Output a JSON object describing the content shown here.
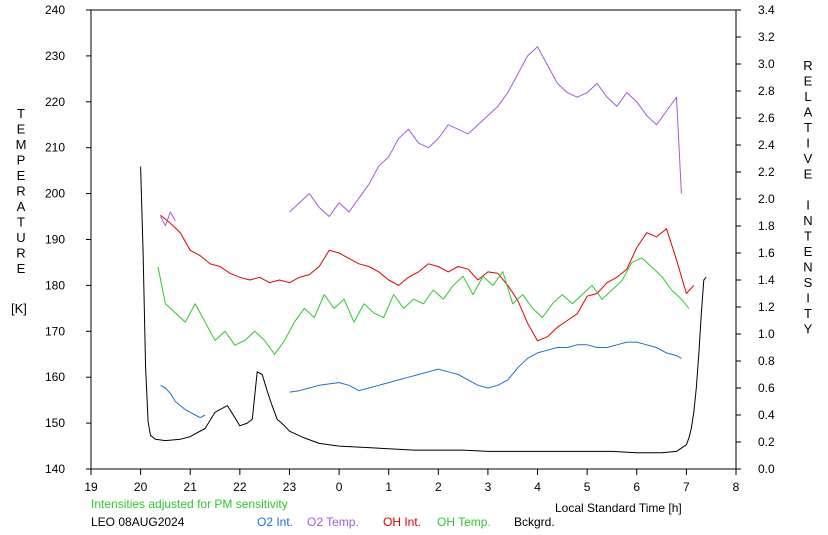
{
  "chart_data": {
    "type": "line",
    "x_axis": {
      "label": "Local Standard Time [h]",
      "ticks": [
        "19",
        "20",
        "21",
        "22",
        "23",
        "0",
        "1",
        "2",
        "3",
        "4",
        "5",
        "6",
        "7",
        "8"
      ],
      "range": [
        19,
        32
      ]
    },
    "y_left": {
      "label_letters": [
        "T",
        "E",
        "M",
        "P",
        "E",
        "R",
        "A",
        "T",
        "U",
        "R",
        "E"
      ],
      "unit": "[K]",
      "range": [
        140,
        240
      ],
      "ticks": [
        "140",
        "150",
        "160",
        "170",
        "180",
        "190",
        "200",
        "210",
        "220",
        "230",
        "240"
      ]
    },
    "y_right": {
      "label_words": [
        "RELATIVE",
        "INTENSITY"
      ],
      "range": [
        0.0,
        3.4
      ],
      "ticks": [
        "0.0",
        "0.2",
        "0.4",
        "0.6",
        "0.8",
        "1.0",
        "1.2",
        "1.4",
        "1.6",
        "1.8",
        "2.0",
        "2.2",
        "2.4",
        "2.6",
        "2.8",
        "3.0",
        "3.2",
        "3.4"
      ]
    },
    "note": "Intensities adjusted for PM sensitivity",
    "station": "LEO 08AUG2024",
    "legend": [
      {
        "name": "O2 Int.",
        "color": "#1f6fd6"
      },
      {
        "name": "O2 Temp.",
        "color": "#a45bd6"
      },
      {
        "name": "OH Int.",
        "color": "#e00000"
      },
      {
        "name": "OH Temp.",
        "color": "#2ec92e"
      },
      {
        "name": "Bckgrd.",
        "color": "#000000"
      }
    ],
    "series": [
      {
        "name": "Bckgrd.",
        "axis": "right",
        "color": "#000000",
        "x": [
          20.0,
          20.05,
          20.1,
          20.15,
          20.2,
          20.3,
          20.5,
          20.8,
          21.0,
          21.3,
          21.5,
          21.75,
          21.9,
          22.0,
          22.15,
          22.25,
          22.35,
          22.45,
          22.55,
          22.65,
          22.75,
          22.9,
          23.0,
          23.3,
          23.6,
          24.0,
          24.5,
          25.0,
          25.5,
          26.0,
          26.5,
          27.0,
          27.5,
          28.0,
          28.5,
          29.0,
          29.5,
          30.0,
          30.5,
          30.8,
          31.0,
          31.05,
          31.1,
          31.15,
          31.2,
          31.25,
          31.3,
          31.35,
          31.4
        ],
        "y": [
          2.24,
          1.6,
          0.75,
          0.35,
          0.25,
          0.22,
          0.21,
          0.22,
          0.24,
          0.3,
          0.42,
          0.47,
          0.38,
          0.32,
          0.34,
          0.37,
          0.72,
          0.7,
          0.58,
          0.47,
          0.37,
          0.32,
          0.28,
          0.23,
          0.19,
          0.17,
          0.16,
          0.15,
          0.14,
          0.14,
          0.14,
          0.13,
          0.13,
          0.13,
          0.13,
          0.13,
          0.13,
          0.12,
          0.12,
          0.13,
          0.18,
          0.23,
          0.3,
          0.42,
          0.6,
          0.85,
          1.15,
          1.4,
          1.42
        ]
      },
      {
        "name": "OH Int.",
        "axis": "right",
        "color": "#e00000",
        "x": [
          20.4,
          20.5,
          20.6,
          20.8,
          21.0,
          21.2,
          21.4,
          21.6,
          21.8,
          22.0,
          22.2,
          22.4,
          22.6,
          22.8,
          23.0,
          23.2,
          23.4,
          23.6,
          23.8,
          24.0,
          24.2,
          24.4,
          24.6,
          24.8,
          25.0,
          25.2,
          25.4,
          25.6,
          25.8,
          26.0,
          26.2,
          26.4,
          26.6,
          26.8,
          27.0,
          27.2,
          27.4,
          27.6,
          27.8,
          28.0,
          28.2,
          28.4,
          28.6,
          28.8,
          29.0,
          29.2,
          29.4,
          29.6,
          29.8,
          30.0,
          30.2,
          30.4,
          30.6,
          30.8,
          31.0,
          31.15
        ],
        "y": [
          1.88,
          1.85,
          1.82,
          1.75,
          1.62,
          1.58,
          1.52,
          1.5,
          1.45,
          1.42,
          1.4,
          1.42,
          1.38,
          1.4,
          1.38,
          1.42,
          1.44,
          1.5,
          1.62,
          1.6,
          1.56,
          1.52,
          1.5,
          1.46,
          1.4,
          1.36,
          1.42,
          1.46,
          1.52,
          1.5,
          1.46,
          1.5,
          1.48,
          1.4,
          1.46,
          1.45,
          1.36,
          1.25,
          1.08,
          0.95,
          0.98,
          1.05,
          1.1,
          1.15,
          1.28,
          1.3,
          1.38,
          1.42,
          1.48,
          1.64,
          1.75,
          1.72,
          1.78,
          1.55,
          1.3,
          1.36
        ]
      },
      {
        "name": "OH Temp.",
        "axis": "left",
        "color": "#2ec92e",
        "x": [
          20.35,
          20.5,
          20.7,
          20.9,
          21.1,
          21.3,
          21.5,
          21.7,
          21.9,
          22.1,
          22.3,
          22.5,
          22.7,
          22.9,
          23.1,
          23.3,
          23.5,
          23.7,
          23.9,
          24.1,
          24.3,
          24.5,
          24.7,
          24.9,
          25.1,
          25.3,
          25.5,
          25.7,
          25.9,
          26.1,
          26.3,
          26.5,
          26.7,
          26.9,
          27.1,
          27.3,
          27.5,
          27.7,
          27.9,
          28.1,
          28.3,
          28.5,
          28.7,
          28.9,
          29.1,
          29.3,
          29.5,
          29.7,
          29.9,
          30.1,
          30.3,
          30.5,
          30.7,
          30.9,
          31.05
        ],
        "y": [
          184,
          176,
          174,
          172,
          176,
          172,
          168,
          170,
          167,
          168,
          170,
          168,
          165,
          168,
          172,
          175,
          173,
          178,
          175,
          177,
          172,
          176,
          174,
          173,
          178,
          175,
          177,
          176,
          179,
          177,
          180,
          182,
          178,
          182,
          180,
          183,
          176,
          178,
          175,
          173,
          176,
          178,
          176,
          178,
          180,
          177,
          179,
          181,
          185,
          186,
          184,
          182,
          179,
          177,
          175
        ]
      },
      {
        "name": "O2 Int.",
        "axis": "right",
        "color": "#1f6fd6",
        "x": [
          20.4,
          20.5,
          20.6,
          20.7,
          20.8,
          20.9,
          21.0,
          21.1,
          21.2,
          21.3,
          23.0,
          23.2,
          23.4,
          23.6,
          23.8,
          24.0,
          24.2,
          24.4,
          24.6,
          24.8,
          25.0,
          25.2,
          25.4,
          25.6,
          25.8,
          26.0,
          26.2,
          26.4,
          26.6,
          26.8,
          27.0,
          27.2,
          27.4,
          27.6,
          27.8,
          28.0,
          28.2,
          28.4,
          28.6,
          28.8,
          29.0,
          29.2,
          29.4,
          29.6,
          29.8,
          30.0,
          30.2,
          30.4,
          30.6,
          30.8,
          30.9
        ],
        "y": [
          0.62,
          0.6,
          0.56,
          0.5,
          0.47,
          0.44,
          0.42,
          0.4,
          0.38,
          0.4,
          0.57,
          0.58,
          0.6,
          0.62,
          0.63,
          0.64,
          0.62,
          0.58,
          0.6,
          0.62,
          0.64,
          0.66,
          0.68,
          0.7,
          0.72,
          0.74,
          0.72,
          0.7,
          0.66,
          0.62,
          0.6,
          0.62,
          0.66,
          0.75,
          0.82,
          0.86,
          0.88,
          0.9,
          0.9,
          0.92,
          0.92,
          0.9,
          0.9,
          0.92,
          0.94,
          0.94,
          0.92,
          0.9,
          0.86,
          0.84,
          0.82
        ]
      },
      {
        "name": "O2 Temp.",
        "axis": "left",
        "color": "#a45bd6",
        "x": [
          20.4,
          20.5,
          20.6,
          20.7,
          23.0,
          23.2,
          23.4,
          23.6,
          23.8,
          24.0,
          24.2,
          24.4,
          24.6,
          24.8,
          25.0,
          25.2,
          25.4,
          25.6,
          25.8,
          26.0,
          26.2,
          26.4,
          26.6,
          26.8,
          27.0,
          27.2,
          27.4,
          27.6,
          27.8,
          28.0,
          28.2,
          28.4,
          28.6,
          28.8,
          29.0,
          29.2,
          29.4,
          29.6,
          29.8,
          30.0,
          30.2,
          30.4,
          30.6,
          30.8,
          30.9
        ],
        "y": [
          195,
          193,
          196,
          194,
          196,
          198,
          200,
          197,
          195,
          198,
          196,
          199,
          202,
          206,
          208,
          212,
          214,
          211,
          210,
          212,
          215,
          214,
          213,
          215,
          217,
          219,
          222,
          226,
          230,
          232,
          228,
          224,
          222,
          221,
          222,
          224,
          221,
          219,
          222,
          220,
          217,
          215,
          218,
          221,
          200
        ]
      }
    ]
  }
}
